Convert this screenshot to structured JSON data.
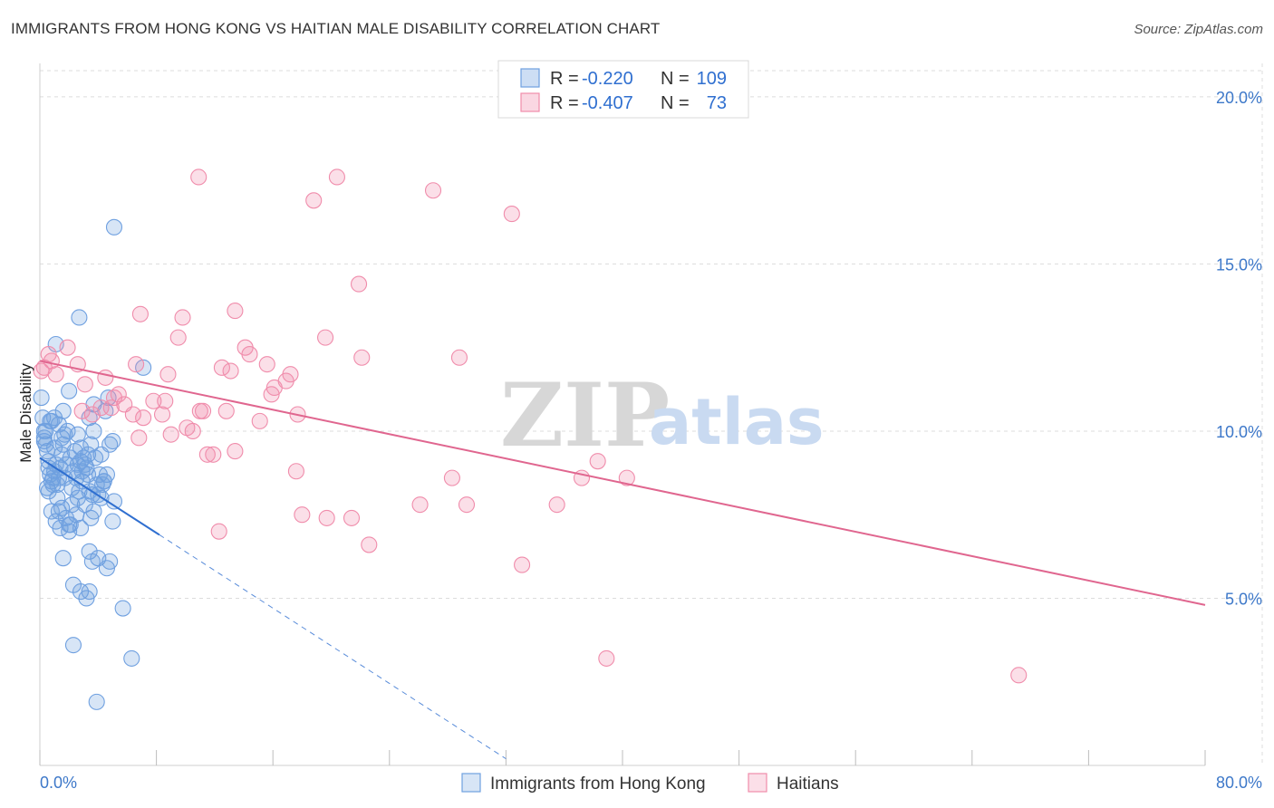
{
  "header": {
    "title": "IMMIGRANTS FROM HONG KONG VS HAITIAN MALE DISABILITY CORRELATION CHART",
    "source": "Source: ZipAtlas.com"
  },
  "watermark": {
    "zip": "ZIP",
    "atlas": "atlas"
  },
  "legend_top": {
    "rows": [
      {
        "r_label": "R = ",
        "r_value": "-0.220",
        "n_label": "N = ",
        "n_value": "109",
        "color": "#6fa0e0"
      },
      {
        "r_label": "R = ",
        "r_value": "-0.407",
        "n_label": "N = ",
        "n_value": "73",
        "color": "#f08cab"
      }
    ]
  },
  "chart_data": {
    "type": "scatter",
    "title": "IMMIGRANTS FROM HONG KONG VS HAITIAN MALE DISABILITY CORRELATION CHART",
    "xlabel": "",
    "ylabel": "Male Disability",
    "xlim": [
      0,
      80
    ],
    "ylim": [
      0,
      21
    ],
    "x_tick_labels": [
      "0.0%",
      "80.0%"
    ],
    "y_ticks": [
      5,
      10,
      15,
      20
    ],
    "y_tick_labels": [
      "5.0%",
      "10.0%",
      "15.0%",
      "20.0%"
    ],
    "grid": true,
    "legend_position": "bottom",
    "series": [
      {
        "name": "Immigrants from Hong Kong",
        "color": "#6fa0e0",
        "fill": "rgba(111,160,224,0.28)",
        "trend": {
          "x0": 0,
          "y0": 9.2,
          "x1": 8.2,
          "y1": 6.9,
          "dash_x1": 32,
          "dash_y1": 0.2
        },
        "points": [
          [
            0.1,
            11.0
          ],
          [
            0.2,
            10.4
          ],
          [
            0.3,
            10.0
          ],
          [
            0.3,
            9.8
          ],
          [
            0.4,
            9.6
          ],
          [
            0.5,
            9.4
          ],
          [
            0.6,
            9.1
          ],
          [
            0.6,
            8.9
          ],
          [
            0.7,
            8.7
          ],
          [
            0.8,
            8.5
          ],
          [
            0.5,
            8.3
          ],
          [
            0.9,
            8.6
          ],
          [
            1.0,
            8.8
          ],
          [
            1.1,
            9.0
          ],
          [
            1.2,
            8.4
          ],
          [
            1.3,
            8.6
          ],
          [
            1.4,
            8.9
          ],
          [
            1.5,
            9.3
          ],
          [
            1.6,
            9.6
          ],
          [
            1.7,
            9.9
          ],
          [
            0.4,
            10.0
          ],
          [
            0.7,
            10.3
          ],
          [
            1.0,
            10.4
          ],
          [
            1.3,
            10.2
          ],
          [
            1.6,
            10.6
          ],
          [
            1.9,
            10.0
          ],
          [
            2.1,
            9.2
          ],
          [
            2.3,
            8.8
          ],
          [
            2.5,
            8.6
          ],
          [
            2.7,
            8.2
          ],
          [
            2.9,
            8.8
          ],
          [
            3.1,
            9.0
          ],
          [
            3.3,
            9.3
          ],
          [
            3.5,
            9.6
          ],
          [
            3.7,
            10.0
          ],
          [
            3.0,
            9.2
          ],
          [
            2.8,
            9.5
          ],
          [
            3.2,
            8.9
          ],
          [
            3.6,
            8.1
          ],
          [
            3.9,
            8.4
          ],
          [
            4.2,
            9.3
          ],
          [
            4.4,
            8.5
          ],
          [
            4.6,
            8.7
          ],
          [
            4.8,
            9.6
          ],
          [
            5.0,
            9.7
          ],
          [
            1.2,
            8.0
          ],
          [
            1.5,
            7.7
          ],
          [
            1.8,
            7.4
          ],
          [
            2.0,
            7.2
          ],
          [
            2.2,
            7.8
          ],
          [
            2.5,
            7.5
          ],
          [
            2.8,
            7.1
          ],
          [
            3.1,
            7.8
          ],
          [
            3.4,
            8.2
          ],
          [
            3.7,
            7.6
          ],
          [
            4.0,
            8.1
          ],
          [
            4.3,
            8.4
          ],
          [
            0.8,
            7.6
          ],
          [
            1.1,
            7.3
          ],
          [
            1.4,
            7.1
          ],
          [
            5.1,
            16.1
          ],
          [
            2.7,
            13.4
          ],
          [
            1.1,
            12.6
          ],
          [
            7.1,
            11.9
          ],
          [
            4.7,
            11.0
          ],
          [
            3.7,
            10.8
          ],
          [
            4.5,
            10.6
          ],
          [
            3.4,
            10.4
          ],
          [
            2.0,
            11.2
          ],
          [
            2.6,
            9.9
          ],
          [
            2.8,
            9.1
          ],
          [
            3.4,
            6.4
          ],
          [
            4.0,
            6.2
          ],
          [
            3.6,
            6.1
          ],
          [
            4.6,
            5.9
          ],
          [
            4.8,
            6.1
          ],
          [
            2.3,
            5.4
          ],
          [
            2.8,
            5.2
          ],
          [
            3.2,
            5.0
          ],
          [
            3.4,
            5.2
          ],
          [
            5.7,
            4.7
          ],
          [
            2.3,
            3.6
          ],
          [
            6.3,
            3.2
          ],
          [
            3.9,
            1.9
          ],
          [
            1.6,
            6.2
          ],
          [
            2.1,
            7.2
          ],
          [
            2.6,
            8.0
          ],
          [
            3.3,
            8.7
          ],
          [
            0.9,
            8.4
          ],
          [
            1.7,
            8.6
          ],
          [
            2.4,
            9.4
          ],
          [
            3.8,
            9.2
          ],
          [
            4.1,
            8.7
          ],
          [
            0.6,
            8.2
          ],
          [
            1.0,
            9.5
          ],
          [
            1.8,
            9.0
          ],
          [
            2.2,
            8.3
          ],
          [
            2.9,
            8.5
          ],
          [
            3.5,
            7.4
          ],
          [
            1.3,
            7.6
          ],
          [
            5.1,
            7.9
          ],
          [
            5.0,
            7.3
          ],
          [
            4.4,
            8.5
          ],
          [
            0.3,
            9.7
          ],
          [
            2.0,
            7.0
          ],
          [
            1.5,
            9.8
          ],
          [
            2.6,
            9.0
          ],
          [
            4.2,
            8.0
          ],
          [
            0.8,
            10.3
          ]
        ]
      },
      {
        "name": "Haitians",
        "color": "#f08cab",
        "fill": "rgba(240,140,171,0.28)",
        "trend": {
          "x0": 0,
          "y0": 12.1,
          "x1": 80,
          "y1": 4.8
        },
        "points": [
          [
            0.1,
            11.8
          ],
          [
            0.3,
            11.9
          ],
          [
            0.6,
            12.3
          ],
          [
            1.1,
            11.7
          ],
          [
            1.9,
            12.5
          ],
          [
            2.6,
            12.0
          ],
          [
            3.1,
            11.4
          ],
          [
            3.6,
            10.5
          ],
          [
            4.2,
            10.7
          ],
          [
            4.5,
            11.6
          ],
          [
            5.1,
            11.0
          ],
          [
            5.8,
            10.8
          ],
          [
            6.4,
            10.5
          ],
          [
            6.6,
            12.0
          ],
          [
            6.8,
            9.8
          ],
          [
            7.1,
            10.4
          ],
          [
            7.8,
            10.9
          ],
          [
            8.4,
            10.5
          ],
          [
            8.6,
            10.9
          ],
          [
            8.8,
            11.7
          ],
          [
            9.0,
            9.9
          ],
          [
            9.5,
            12.8
          ],
          [
            9.8,
            13.4
          ],
          [
            10.1,
            10.1
          ],
          [
            10.5,
            10.0
          ],
          [
            11.0,
            10.6
          ],
          [
            11.2,
            10.6
          ],
          [
            11.5,
            9.3
          ],
          [
            11.9,
            9.3
          ],
          [
            12.5,
            11.9
          ],
          [
            12.8,
            10.6
          ],
          [
            13.1,
            11.8
          ],
          [
            13.4,
            9.4
          ],
          [
            14.1,
            12.5
          ],
          [
            14.4,
            12.3
          ],
          [
            15.1,
            10.3
          ],
          [
            15.6,
            12.0
          ],
          [
            15.9,
            11.1
          ],
          [
            16.1,
            11.3
          ],
          [
            16.9,
            11.5
          ],
          [
            17.2,
            11.7
          ],
          [
            17.7,
            10.5
          ],
          [
            13.4,
            13.6
          ],
          [
            6.9,
            13.5
          ],
          [
            10.9,
            17.6
          ],
          [
            18.8,
            16.9
          ],
          [
            20.4,
            17.6
          ],
          [
            27.0,
            17.2
          ],
          [
            32.4,
            16.5
          ],
          [
            21.9,
            14.4
          ],
          [
            19.6,
            12.8
          ],
          [
            22.1,
            12.2
          ],
          [
            28.8,
            12.2
          ],
          [
            17.6,
            8.8
          ],
          [
            18.0,
            7.5
          ],
          [
            19.7,
            7.4
          ],
          [
            21.4,
            7.4
          ],
          [
            22.6,
            6.6
          ],
          [
            26.1,
            7.8
          ],
          [
            28.3,
            8.6
          ],
          [
            29.3,
            7.8
          ],
          [
            35.5,
            7.8
          ],
          [
            37.2,
            8.6
          ],
          [
            38.3,
            9.1
          ],
          [
            40.3,
            8.6
          ],
          [
            33.1,
            6.0
          ],
          [
            12.3,
            7.0
          ],
          [
            38.9,
            3.2
          ],
          [
            67.2,
            2.7
          ],
          [
            4.9,
            10.7
          ],
          [
            2.9,
            10.6
          ],
          [
            5.4,
            11.1
          ],
          [
            0.8,
            12.1
          ]
        ]
      }
    ]
  }
}
